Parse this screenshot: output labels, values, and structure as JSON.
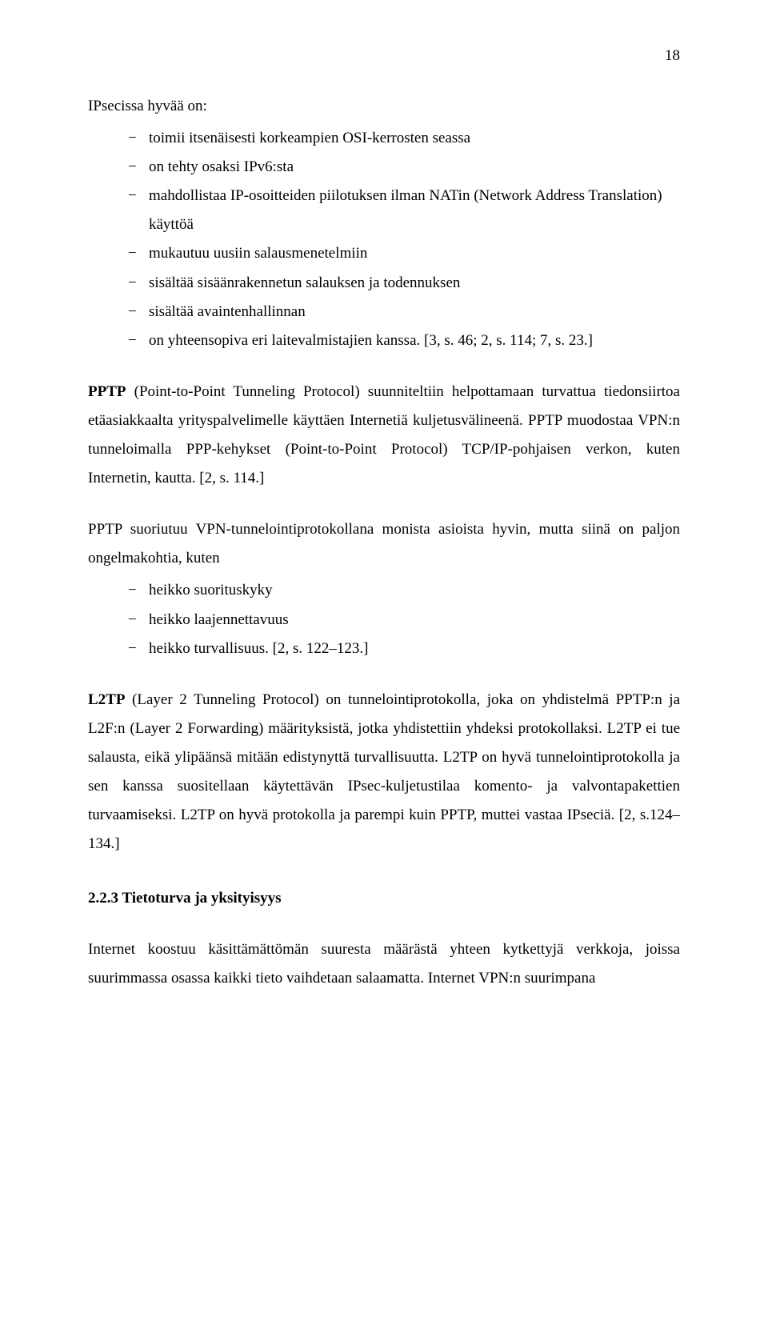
{
  "page": {
    "number": "18",
    "font_family": "Times New Roman",
    "text_color": "#000000",
    "background_color": "#ffffff",
    "body_font_size_pt": 14,
    "line_spacing": 1.9
  },
  "content": {
    "ipsec_intro": "IPsecissa hyvää on:",
    "ipsec_list": [
      "toimii itsenäisesti korkeampien OSI-kerrosten seassa",
      "on tehty osaksi IPv6:sta",
      "mahdollistaa IP-osoitteiden piilotuksen ilman NATin (Network Address Translation) käyttöä",
      "mukautuu uusiin salausmenetelmiin",
      "sisältää sisäänrakennetun salauksen ja todennuksen",
      "sisältää avaintenhallinnan",
      "on yhteensopiva eri laitevalmistajien kanssa. [3, s. 46; 2, s. 114; 7, s. 23.]"
    ],
    "pptp_para1_bold": "PPTP",
    "pptp_para1_rest": " (Point-to-Point Tunneling Protocol) suunniteltiin helpottamaan turvattua tiedonsiirtoa etäasiakkaalta yrityspalvelimelle käyttäen Internetiä kuljetusvälineenä. PPTP muodostaa VPN:n tunneloimalla PPP-kehykset (Point-to-Point Protocol) TCP/IP-pohjaisen verkon, kuten Internetin, kautta. [2, s. 114.]",
    "pptp_para2": "PPTP suoriutuu VPN-tunnelointiprotokollana monista asioista hyvin, mutta siinä on paljon ongelmakohtia, kuten",
    "pptp_list": [
      "heikko suorituskyky",
      "heikko laajennettavuus",
      "heikko turvallisuus. [2, s. 122–123.]"
    ],
    "l2tp_bold": "L2TP",
    "l2tp_rest": " (Layer 2 Tunneling Protocol) on tunnelointiprotokolla, joka on yhdistelmä PPTP:n ja L2F:n (Layer 2 Forwarding) määrityksistä, jotka yhdistettiin yhdeksi protokollaksi. L2TP ei tue salausta, eikä ylipäänsä mitään edistynyttä turvallisuutta. L2TP on hyvä tunnelointiprotokolla ja sen kanssa suositellaan käytettävän IPsec-kuljetustilaa komento- ja valvontapakettien turvaamiseksi. L2TP on hyvä protokolla ja parempi kuin PPTP, muttei vastaa IPseciä. [2, s.124–134.]",
    "subsection_heading": "2.2.3 Tietoturva ja yksityisyys",
    "closing_para": "Internet koostuu käsittämättömän suuresta määrästä yhteen kytkettyjä verkkoja, joissa suurimmassa osassa kaikki tieto vaihdetaan salaamatta. Internet VPN:n suurimpana"
  }
}
